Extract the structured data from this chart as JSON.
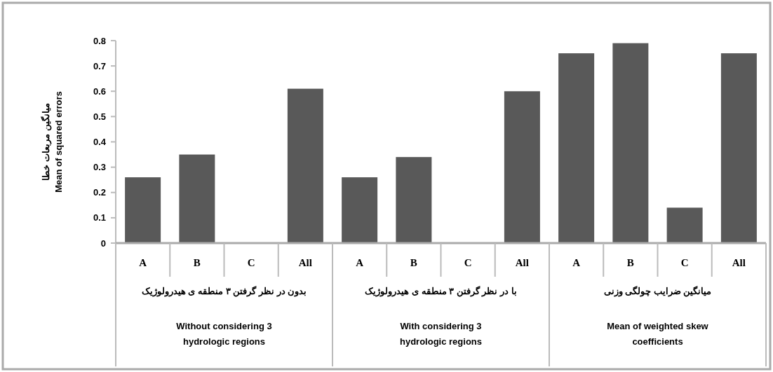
{
  "chart_data": {
    "type": "bar",
    "ylabel": "میانگین مربعات خطا\nMean of squared errors",
    "categories": [
      "A",
      "B",
      "C",
      "All",
      "A",
      "B",
      "C",
      "All",
      "A",
      "B",
      "C",
      "All"
    ],
    "values": [
      0.26,
      0.35,
      0,
      0.61,
      0.26,
      0.34,
      0,
      0.6,
      0.75,
      0.79,
      0.14,
      0.75
    ],
    "color": "#595959",
    "ylim": [
      0,
      0.8
    ],
    "yticks": [
      0,
      0.1,
      0.2,
      0.3,
      0.4,
      0.5,
      0.6,
      0.7,
      0.8
    ],
    "grid": false,
    "annotations": [
      "بدون در نظر گرفتن ۳ منطقه ی هیدرولوژیک\nWithout considering 3\nhydrologic regions",
      "با در نظر گرفتن ۳ منطقه ی هیدرولوژیک\nWith considering 3\nhydrologic regions",
      "میانگین ضرایب چولگی وزنی\nMean of weighted skew\ncoefficients"
    ]
  }
}
